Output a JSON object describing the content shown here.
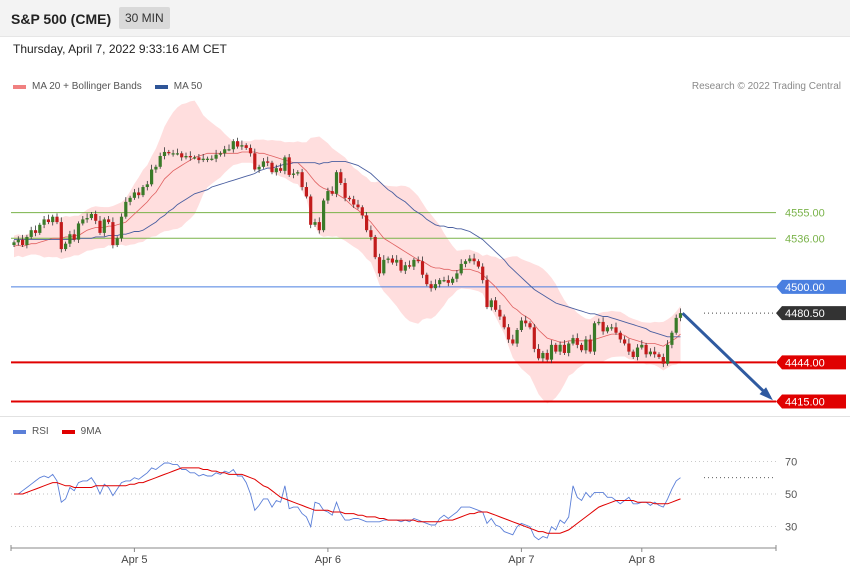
{
  "header": {
    "title": "S&P 500 (CME)",
    "interval": "30 MIN"
  },
  "datetime": "Thursday, April 7, 2022 9:33:16 AM CET",
  "credit": "Research © 2022 Trading Central",
  "colors": {
    "candle_up": "#3a7a28",
    "candle_down": "#c21b1b",
    "ma20": "#e06060",
    "ma50": "#4a5fa0",
    "bands": "#ffd6d6",
    "support": "#e00000",
    "pivot": "#4a7fe0",
    "resistance": "#7ab34a",
    "last": "#333333",
    "arrow": "#2f5aa0",
    "rsi": "#5b7fd8",
    "rsi_ma": "#e00000"
  },
  "chart_data": [
    {
      "type": "candlestick",
      "legend": [
        {
          "name": "MA 20 + Bollinger Bands",
          "color": "#f08080"
        },
        {
          "name": "MA 50",
          "color": "#2f5597"
        }
      ],
      "ylim": [
        4405,
        4640
      ],
      "x_ticks": [
        {
          "label": "Apr 5",
          "index": 28
        },
        {
          "label": "Apr 6",
          "index": 73
        },
        {
          "label": "Apr 7",
          "index": 118
        },
        {
          "label": "Apr 8",
          "index": 146
        }
      ],
      "levels": [
        {
          "value": 4555.0,
          "label": "4555.00",
          "kind": "resistance"
        },
        {
          "value": 4536.0,
          "label": "4536.00",
          "kind": "resistance"
        },
        {
          "value": 4500.0,
          "label": "4500.00",
          "kind": "pivot"
        },
        {
          "value": 4480.5,
          "label": "4480.50",
          "kind": "last"
        },
        {
          "value": 4444.0,
          "label": "4444.00",
          "kind": "support"
        },
        {
          "value": 4415.0,
          "label": "4415.00",
          "kind": "support"
        }
      ],
      "close": [
        4533,
        4535,
        4531,
        4537,
        4542,
        4540,
        4546,
        4550,
        4548,
        4552,
        4548,
        4528,
        4532,
        4539,
        4535,
        4547,
        4550,
        4551,
        4554,
        4549,
        4540,
        4550,
        4548,
        4531,
        4536,
        4552,
        4563,
        4566,
        4570,
        4568,
        4574,
        4576,
        4587,
        4589,
        4597,
        4600,
        4599,
        4599,
        4599,
        4596,
        4597,
        4596,
        4596,
        4594,
        4595,
        4595,
        4595,
        4598,
        4599,
        4602,
        4602,
        4608,
        4604,
        4605,
        4603,
        4599,
        4587,
        4589,
        4593,
        4592,
        4585,
        4588,
        4586,
        4596,
        4583,
        4584,
        4585,
        4574,
        4567,
        4546,
        4548,
        4542,
        4564,
        4571,
        4569,
        4585,
        4577,
        4566,
        4565,
        4561,
        4559,
        4553,
        4542,
        4537,
        4522,
        4510,
        4520,
        4521,
        4518,
        4520,
        4512,
        4516,
        4515,
        4520,
        4519,
        4509,
        4502,
        4499,
        4502,
        4505,
        4505,
        4503,
        4506,
        4510,
        4517,
        4519,
        4521,
        4519,
        4515,
        4505,
        4485,
        4490,
        4483,
        4478,
        4470,
        4461,
        4458,
        4468,
        4475,
        4473,
        4470,
        4454,
        4447,
        4451,
        4446,
        4457,
        4452,
        4457,
        4451,
        4458,
        4462,
        4457,
        4453,
        4461,
        4452,
        4473,
        4474,
        4467,
        4470,
        4470,
        4466,
        4461,
        4458,
        4452,
        4448,
        4455,
        4457,
        4450,
        4452,
        4450,
        4448,
        4443,
        4457,
        4466,
        4477,
        4480.5
      ],
      "ma20": [
        4530,
        4531,
        4530,
        4531,
        4532,
        4532,
        4533,
        4534,
        4535,
        4536,
        4536,
        4536,
        4537,
        4537,
        4538,
        4538,
        4540,
        4542,
        4543,
        4544,
        4544,
        4544,
        4545,
        4545,
        4546,
        4547,
        4548,
        4551,
        4554,
        4557,
        4560,
        4563,
        4567,
        4570,
        4575,
        4580,
        4583,
        4586,
        4588,
        4590,
        4592,
        4594,
        4596,
        4597,
        4598,
        4599,
        4599,
        4599,
        4599,
        4599,
        4599,
        4599,
        4599,
        4600,
        4600,
        4600,
        4600,
        4599,
        4599,
        4598,
        4597,
        4596,
        4595,
        4594,
        4593,
        4592,
        4592,
        4589,
        4586,
        4582,
        4578,
        4575,
        4573,
        4572,
        4570,
        4569,
        4567,
        4565,
        4562,
        4559,
        4557,
        4554,
        4551,
        4548,
        4544,
        4540,
        4536,
        4534,
        4532,
        4530,
        4528,
        4526,
        4524,
        4522,
        4520,
        4519,
        4517,
        4515,
        4514,
        4514,
        4513,
        4513,
        4512,
        4512,
        4513,
        4513,
        4513,
        4512,
        4511,
        4509,
        4506,
        4503,
        4500,
        4496,
        4493,
        4489,
        4485,
        4483,
        4480,
        4478,
        4476,
        4472,
        4468,
        4465,
        4462,
        4461,
        4460,
        4459,
        4459,
        4460,
        4460,
        4460,
        4460,
        4460,
        4460,
        4461,
        4462,
        4463,
        4464,
        4465,
        4465,
        4465,
        4464,
        4462,
        4461,
        4460,
        4459,
        4458,
        4458,
        4458,
        4457,
        4456,
        4458,
        4460,
        4462,
        4465
      ],
      "ma50": [
        4535,
        4535,
        4535,
        4535,
        4535,
        4535,
        4535,
        4535,
        4535,
        4535,
        4535,
        4535,
        4535,
        4535,
        4535,
        4536,
        4536,
        4536,
        4536,
        4537,
        4537,
        4537,
        4538,
        4538,
        4538,
        4539,
        4539,
        4540,
        4541,
        4541,
        4542,
        4544,
        4546,
        4548,
        4551,
        4553,
        4556,
        4558,
        4561,
        4563,
        4565,
        4567,
        4569,
        4570,
        4571,
        4572,
        4574,
        4575,
        4576,
        4577,
        4578,
        4579,
        4580,
        4581,
        4582,
        4583,
        4584,
        4586,
        4587,
        4588,
        4588,
        4589,
        4590,
        4591,
        4591,
        4592,
        4592,
        4592,
        4592,
        4592,
        4592,
        4591,
        4592,
        4592,
        4593,
        4593,
        4593,
        4593,
        4592,
        4591,
        4590,
        4588,
        4586,
        4584,
        4581,
        4578,
        4575,
        4572,
        4570,
        4567,
        4565,
        4563,
        4560,
        4557,
        4555,
        4553,
        4550,
        4548,
        4546,
        4545,
        4545,
        4544,
        4544,
        4543,
        4543,
        4542,
        4541,
        4539,
        4537,
        4535,
        4532,
        4529,
        4526,
        4523,
        4520,
        4516,
        4513,
        4510,
        4507,
        4504,
        4501,
        4498,
        4496,
        4494,
        4492,
        4490,
        4488,
        4487,
        4486,
        4485,
        4484,
        4483,
        4482,
        4481,
        4480,
        4480,
        4479,
        4478,
        4478,
        4477,
        4476,
        4475,
        4474,
        4473,
        4472,
        4471,
        4470,
        4469,
        4467,
        4466,
        4465,
        4464,
        4463,
        4463,
        4463,
        4463
      ]
    },
    {
      "type": "line",
      "legend": [
        {
          "name": "RSI",
          "color": "#5b7fd8"
        },
        {
          "name": "9MA",
          "color": "#e00000"
        }
      ],
      "ylim": [
        20,
        80
      ],
      "y_ticks": [
        70,
        50,
        30
      ],
      "rsi": [
        50,
        50,
        52,
        54,
        56,
        58,
        60,
        61,
        60,
        62,
        58,
        45,
        47,
        54,
        52,
        57,
        58,
        58,
        60,
        56,
        50,
        56,
        54,
        49,
        53,
        57,
        58,
        58,
        60,
        59,
        61,
        63,
        66,
        65,
        67,
        69,
        69,
        68,
        68,
        65,
        65,
        63,
        63,
        61,
        62,
        61,
        61,
        63,
        62,
        64,
        63,
        65,
        61,
        61,
        57,
        50,
        40,
        43,
        47,
        47,
        42,
        46,
        45,
        55,
        41,
        42,
        42,
        38,
        36,
        30,
        45,
        44,
        40,
        39,
        37,
        45,
        38,
        34,
        34,
        35,
        35,
        34,
        33,
        33,
        33,
        33,
        34,
        34,
        34,
        34,
        33,
        34,
        33,
        35,
        34,
        33,
        32,
        31,
        31,
        35,
        37,
        35,
        37,
        39,
        42,
        42,
        42,
        41,
        40,
        39,
        32,
        35,
        31,
        30,
        27,
        26,
        25,
        30,
        32,
        31,
        30,
        24,
        22,
        24,
        23,
        30,
        28,
        34,
        32,
        36,
        55,
        48,
        46,
        51,
        48,
        51,
        51,
        51,
        48,
        48,
        46,
        44,
        46,
        48,
        44,
        44,
        45,
        45,
        43,
        45,
        43,
        42,
        47,
        53,
        58,
        60
      ],
      "ma9": [
        50,
        50,
        50,
        51,
        52,
        53,
        54,
        55,
        56,
        57,
        57,
        56,
        55,
        55,
        54,
        54,
        54,
        54,
        54,
        55,
        55,
        55,
        55,
        55,
        55,
        55,
        55,
        56,
        56,
        57,
        57,
        58,
        59,
        60,
        61,
        62,
        63,
        64,
        65,
        66,
        66,
        66,
        66,
        66,
        65,
        65,
        64,
        64,
        63,
        63,
        62,
        62,
        62,
        62,
        61,
        60,
        59,
        57,
        55,
        54,
        52,
        50,
        48,
        47,
        46,
        45,
        44,
        43,
        42,
        41,
        40,
        40,
        40,
        40,
        39,
        39,
        39,
        38,
        38,
        38,
        37,
        37,
        36,
        36,
        36,
        35,
        35,
        34,
        34,
        34,
        34,
        34,
        34,
        34,
        33,
        33,
        33,
        33,
        33,
        33,
        34,
        34,
        34,
        35,
        36,
        37,
        38,
        38,
        39,
        39,
        39,
        38,
        37,
        36,
        35,
        34,
        33,
        32,
        31,
        30,
        29,
        28,
        27,
        27,
        26,
        26,
        26,
        26,
        27,
        28,
        30,
        32,
        34,
        36,
        38,
        40,
        42,
        43,
        44,
        45,
        46,
        46,
        46,
        46,
        46,
        45,
        45,
        45,
        45,
        44,
        44,
        44,
        44,
        45,
        46,
        47
      ]
    }
  ]
}
